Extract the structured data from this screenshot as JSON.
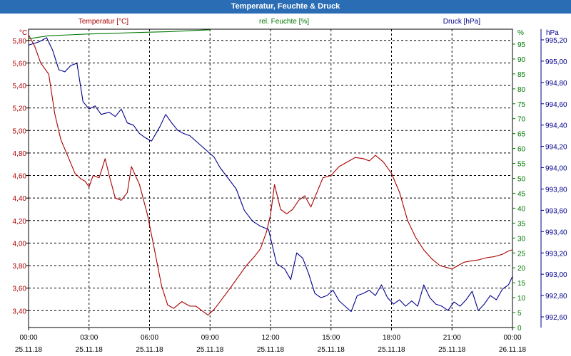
{
  "window": {
    "title": "Temperatur, Feuchte & Druck"
  },
  "chart_data": {
    "type": "line",
    "title": "Temperatur, Feuchte & Druck",
    "colors": {
      "temperature": "#aa0000",
      "humidity": "#007700",
      "pressure": "#00008b",
      "grid": "#000000"
    },
    "grid": true,
    "x_ticks": [
      {
        "time": "00:00",
        "date": "25.11.18"
      },
      {
        "time": "03:00",
        "date": "25.11.18"
      },
      {
        "time": "06:00",
        "date": "25.11.18"
      },
      {
        "time": "09:00",
        "date": "25.11.18"
      },
      {
        "time": "12:00",
        "date": "25.11.18"
      },
      {
        "time": "15:00",
        "date": "25.11.18"
      },
      {
        "time": "18:00",
        "date": "25.11.18"
      },
      {
        "time": "21:00",
        "date": "25.11.18"
      },
      {
        "time": "00:00",
        "date": "26.11.18"
      }
    ],
    "axes": {
      "left": {
        "label": "Temperatur [°C]",
        "unit": "°C",
        "ylim": [
          3.25,
          5.9
        ],
        "ticks": [
          "3,40",
          "3,60",
          "3,80",
          "4,00",
          "4,20",
          "4,40",
          "4,60",
          "4,80",
          "5,00",
          "5,20",
          "5,40",
          "5,60",
          "5,80"
        ],
        "tick_values": [
          3.4,
          3.6,
          3.8,
          4.0,
          4.2,
          4.4,
          4.6,
          4.8,
          5.0,
          5.2,
          5.4,
          5.6,
          5.8
        ]
      },
      "middle": {
        "label": "rel. Feuchte [%]",
        "unit": "%",
        "ylim": [
          0,
          100
        ],
        "ticks": [
          "0",
          "5",
          "10",
          "15",
          "20",
          "25",
          "30",
          "35",
          "40",
          "45",
          "50",
          "55",
          "60",
          "65",
          "70",
          "75",
          "80",
          "85",
          "90",
          "95"
        ],
        "tick_values": [
          0,
          5,
          10,
          15,
          20,
          25,
          30,
          35,
          40,
          45,
          50,
          55,
          60,
          65,
          70,
          75,
          80,
          85,
          90,
          95
        ]
      },
      "right": {
        "label": "Druck [hPa]",
        "unit": "hPa",
        "ylim": [
          992.5,
          995.3
        ],
        "ticks": [
          "992,60",
          "992,80",
          "993,00",
          "993,20",
          "993,40",
          "993,60",
          "993,80",
          "994,00",
          "994,20",
          "994,40",
          "994,60",
          "994,80",
          "995,00",
          "995,20"
        ],
        "tick_values": [
          992.6,
          992.8,
          993.0,
          993.2,
          993.4,
          993.6,
          993.8,
          994.0,
          994.2,
          994.4,
          994.6,
          994.8,
          995.0,
          995.2
        ]
      }
    },
    "series": [
      {
        "name": "Temperatur [°C]",
        "axis": "left",
        "x": [
          0,
          0.3,
          0.6,
          1.0,
          1.3,
          1.6,
          2.0,
          2.3,
          2.6,
          2.8,
          3.0,
          3.2,
          3.5,
          3.8,
          4.0,
          4.3,
          4.6,
          4.9,
          5.1,
          5.5,
          5.9,
          6.2,
          6.6,
          6.9,
          7.2,
          7.6,
          8.0,
          8.3,
          8.6,
          8.9,
          9.2,
          9.5,
          10.0,
          10.4,
          10.8,
          11.2,
          11.5,
          11.8,
          12.0,
          12.2,
          12.5,
          12.8,
          13.1,
          13.4,
          13.7,
          14.0,
          14.3,
          14.6,
          15.0,
          15.4,
          15.8,
          16.2,
          16.6,
          16.9,
          17.2,
          17.6,
          18.0,
          18.4,
          18.8,
          19.2,
          19.6,
          20.0,
          20.4,
          20.8,
          21.0,
          21.3,
          21.6,
          21.9,
          22.3,
          22.7,
          23.1,
          23.5,
          23.8,
          24.0
        ],
        "values": [
          5.85,
          5.75,
          5.6,
          5.5,
          5.15,
          4.92,
          4.75,
          4.62,
          4.57,
          4.55,
          4.5,
          4.6,
          4.58,
          4.75,
          4.6,
          4.4,
          4.38,
          4.45,
          4.68,
          4.52,
          4.25,
          3.98,
          3.62,
          3.45,
          3.42,
          3.48,
          3.44,
          3.44,
          3.4,
          3.36,
          3.41,
          3.48,
          3.6,
          3.7,
          3.8,
          3.88,
          3.95,
          4.1,
          4.25,
          4.52,
          4.3,
          4.26,
          4.3,
          4.38,
          4.42,
          4.32,
          4.45,
          4.58,
          4.6,
          4.68,
          4.72,
          4.76,
          4.75,
          4.73,
          4.78,
          4.72,
          4.62,
          4.45,
          4.2,
          4.05,
          3.94,
          3.86,
          3.8,
          3.78,
          3.77,
          3.8,
          3.83,
          3.84,
          3.85,
          3.87,
          3.88,
          3.9,
          3.93,
          3.94
        ]
      },
      {
        "name": "rel. Feuchte [%]",
        "axis": "middle",
        "x": [
          0,
          0.5,
          1.0,
          2.0,
          3.0,
          4.0,
          5.0,
          6.0,
          7.0,
          8.0,
          9.0
        ],
        "values": [
          96.8,
          97.3,
          97.8,
          98.1,
          98.4,
          98.6,
          98.8,
          99.0,
          99.2,
          99.5,
          99.8
        ]
      },
      {
        "name": "Druck [hPa]",
        "axis": "right",
        "x": [
          0,
          0.5,
          0.9,
          1.2,
          1.5,
          1.8,
          2.1,
          2.4,
          2.7,
          3.0,
          3.3,
          3.6,
          4.0,
          4.3,
          4.6,
          4.9,
          5.2,
          5.5,
          5.8,
          6.1,
          6.5,
          6.8,
          7.1,
          7.4,
          7.7,
          8.0,
          8.3,
          8.6,
          8.9,
          9.2,
          9.5,
          9.9,
          10.3,
          10.7,
          11.1,
          11.5,
          11.9,
          12.3,
          12.7,
          13.0,
          13.3,
          13.6,
          13.9,
          14.2,
          14.5,
          14.8,
          15.1,
          15.4,
          15.7,
          16.0,
          16.3,
          16.6,
          16.9,
          17.2,
          17.5,
          17.8,
          18.1,
          18.4,
          18.7,
          19.0,
          19.3,
          19.6,
          19.9,
          20.2,
          20.5,
          20.8,
          21.1,
          21.4,
          21.7,
          22.0,
          22.3,
          22.6,
          22.9,
          23.2,
          23.5,
          23.8,
          24.0
        ],
        "values": [
          995.15,
          995.18,
          995.22,
          995.1,
          994.92,
          994.9,
          994.96,
          994.98,
          994.62,
          994.55,
          994.58,
          994.5,
          994.52,
          994.48,
          994.55,
          994.42,
          994.4,
          994.32,
          994.28,
          994.25,
          994.38,
          994.5,
          994.42,
          994.35,
          994.32,
          994.3,
          994.25,
          994.2,
          994.15,
          994.1,
          994.0,
          993.9,
          993.8,
          993.6,
          993.5,
          993.45,
          993.42,
          993.1,
          993.05,
          992.95,
          993.2,
          993.15,
          993.0,
          992.82,
          992.78,
          992.8,
          992.85,
          992.75,
          992.7,
          992.65,
          992.8,
          992.82,
          992.85,
          992.8,
          992.9,
          992.78,
          992.72,
          992.76,
          992.7,
          992.75,
          992.7,
          992.9,
          992.78,
          992.72,
          992.7,
          992.66,
          992.74,
          992.7,
          992.76,
          992.84,
          992.66,
          992.72,
          992.8,
          992.76,
          992.86,
          992.9,
          992.98
        ]
      }
    ]
  }
}
